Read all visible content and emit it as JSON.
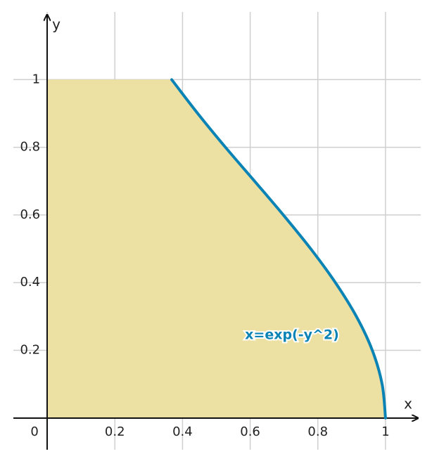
{
  "chart_data": {
    "type": "line",
    "x_label": "x",
    "y_label": "y",
    "x": [
      1,
      0.99,
      0.961,
      0.914,
      0.852,
      0.779,
      0.698,
      0.613,
      0.527,
      0.445,
      0.368
    ],
    "values": [
      0,
      0.1,
      0.2,
      0.3,
      0.4,
      0.5,
      0.6,
      0.7,
      0.8,
      0.9,
      1
    ],
    "color": "#0b84b5",
    "fill_color": "#ede0a3",
    "annotation": "x=exp(-y^2)",
    "xlim": [
      -0.1,
      1.1
    ],
    "ylim": [
      -0.1,
      1.2
    ],
    "xticks": [
      0,
      0.2,
      0.4,
      0.6,
      0.8,
      1
    ],
    "yticks": [
      0.2,
      0.4,
      0.6,
      0.8,
      1
    ],
    "grid": true
  }
}
